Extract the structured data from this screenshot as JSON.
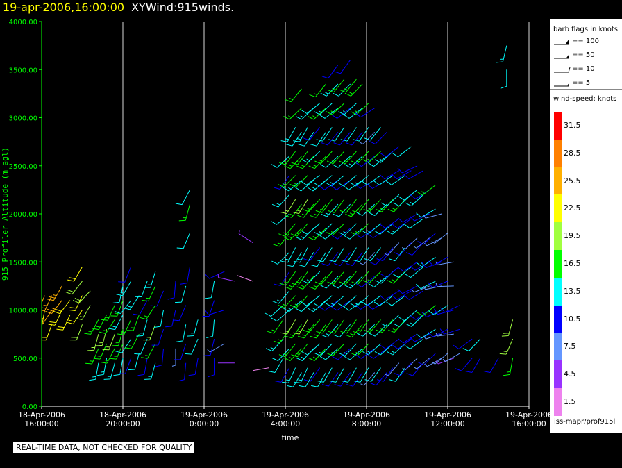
{
  "header": {
    "timestamp": "19-apr-2006,16:00:00",
    "plot_name": "XYWind:915winds."
  },
  "chart_data": {
    "type": "scatter",
    "title": "19-apr-2006,16:00:00  XYWind:915winds.",
    "xlabel": "time",
    "ylabel": "915 Profiler Altitude (m agl)",
    "ylim": [
      0,
      4000
    ],
    "y_ticks": [
      "0.00",
      "500.00",
      "1000.00",
      "1500.00",
      "2000.00",
      "2500.00",
      "3000.00",
      "3500.00",
      "4000.00"
    ],
    "x_ticks": [
      [
        "18-Apr-2006",
        "16:00:00"
      ],
      [
        "18-Apr-2006",
        "20:00:00"
      ],
      [
        "19-Apr-2006",
        "0:00:00"
      ],
      [
        "19-Apr-2006",
        "4:00:00"
      ],
      [
        "19-Apr-2006",
        "8:00:00"
      ],
      [
        "19-Apr-2006",
        "12:00:00"
      ],
      [
        "19-Apr-2006",
        "16:00:00"
      ]
    ],
    "x_range_hours": [
      0,
      24
    ],
    "grid": "vertical lines at each time tick",
    "barb_profiles": [
      {
        "t": 0.15,
        "heights": [
          1000,
          1150
        ],
        "speed": 26,
        "dir": 200
      },
      {
        "t": 0.5,
        "heights": [
          850,
          1000,
          1150
        ],
        "speed": 25,
        "dir": 210
      },
      {
        "t": 1.0,
        "heights": [
          1000,
          1100,
          1250
        ],
        "speed": 25,
        "dir": 215
      },
      {
        "t": 1.4,
        "heights": [
          950,
          1100
        ],
        "speed": 24,
        "dir": 215
      },
      {
        "t": 2.0,
        "heights": [
          850,
          1000,
          1150,
          1300,
          1450
        ],
        "speed": 22,
        "dir": 210
      },
      {
        "t": 2.4,
        "heights": [
          1050,
          1200
        ],
        "speed": 21,
        "dir": 220
      },
      {
        "t": 2.8,
        "heights": [
          450,
          600,
          750,
          900
        ],
        "speed": 17,
        "dir": 200
      },
      {
        "t": 3.2,
        "heights": [
          500,
          650,
          800,
          950
        ],
        "speed": 17,
        "dir": 200
      },
      {
        "t": 3.6,
        "heights": [
          450,
          600,
          750,
          900,
          1050
        ],
        "speed": 17,
        "dir": 205
      },
      {
        "t": 4.0,
        "heights": [
          500,
          650,
          800,
          950,
          1100,
          1250
        ],
        "speed": 16,
        "dir": 200
      },
      {
        "t": 4.4,
        "heights": [
          500,
          700,
          900,
          1100,
          1300,
          1450
        ],
        "speed": 14,
        "dir": 210
      },
      {
        "t": 4.8,
        "heights": [
          550,
          750,
          950,
          1150
        ],
        "speed": 16,
        "dir": 205
      },
      {
        "t": 5.2,
        "heights": [
          500,
          700,
          900,
          1100,
          1300
        ],
        "speed": 13,
        "dir": 200
      },
      {
        "t": 5.6,
        "heights": [
          450,
          650,
          850,
          1050,
          1250,
          1400
        ],
        "speed": 17,
        "dir": 205
      },
      {
        "t": 6.0,
        "heights": [
          600,
          800,
          1000,
          1200
        ],
        "speed": 12,
        "dir": 195
      },
      {
        "t": 6.6,
        "heights": [
          600,
          1000,
          1300
        ],
        "speed": 10,
        "dir": 190
      },
      {
        "t": 7.1,
        "heights": [
          450,
          650,
          850,
          1050,
          1250
        ],
        "speed": 12,
        "dir": 195
      },
      {
        "t": 7.3,
        "heights": [
          1450,
          1800,
          2100,
          2250
        ],
        "speed": 14,
        "dir": 200
      },
      {
        "t": 7.7,
        "heights": [
          500,
          700,
          900
        ],
        "speed": 13,
        "dir": 200
      },
      {
        "t": 8.5,
        "heights": [
          500,
          700,
          900,
          1100,
          1300
        ],
        "speed": 12,
        "dir": 190
      },
      {
        "t": 9.0,
        "heights": [
          650,
          1000,
          1400
        ],
        "speed": 10,
        "dir": 250
      },
      {
        "t": 9.5,
        "heights": [
          450,
          1300
        ],
        "speed": 6,
        "dir": 280
      },
      {
        "t": 10.4,
        "heights": [
          1300,
          1700
        ],
        "speed": 5,
        "dir": 300
      },
      {
        "t": 11.2,
        "heights": [
          400
        ],
        "speed": 4,
        "dir": 270
      },
      {
        "t": 11.9,
        "heights": [
          500,
          700,
          900,
          1050
        ],
        "speed": 15,
        "dir": 220
      },
      {
        "t": 12.2,
        "heights": [
          400,
          600,
          800,
          1000,
          1200,
          1400,
          1600,
          1800,
          2000,
          2200,
          2400,
          2600
        ],
        "speed": 14,
        "dir": 220
      },
      {
        "t": 12.5,
        "heights": [
          400,
          650,
          900,
          1150,
          1400,
          1650,
          1900,
          2150,
          2400,
          2650,
          2900
        ],
        "speed": 17,
        "dir": 215
      },
      {
        "t": 12.8,
        "heights": [
          350,
          600,
          850,
          1100,
          1350,
          1600,
          1850,
          2100,
          2350,
          2600,
          2850,
          3100,
          3300
        ],
        "speed": 16,
        "dir": 220
      },
      {
        "t": 13.1,
        "heights": [
          400,
          650,
          900,
          1150,
          1400,
          1650,
          1900,
          2150,
          2400,
          2650,
          2900
        ],
        "speed": 17,
        "dir": 215
      },
      {
        "t": 13.4,
        "heights": [
          350,
          600,
          850,
          1100,
          1350,
          1600,
          1850,
          2100,
          2350,
          2600,
          2850,
          3100
        ],
        "speed": 15,
        "dir": 220
      },
      {
        "t": 13.7,
        "heights": [
          400,
          650,
          900,
          1150,
          1400,
          1650,
          1900,
          2150,
          2400,
          2650,
          2900,
          3150
        ],
        "speed": 14,
        "dir": 225
      },
      {
        "t": 14.0,
        "heights": [
          350,
          600,
          850,
          1100,
          1350,
          1600,
          1850,
          2100,
          2350,
          2600,
          2850,
          3100,
          3350
        ],
        "speed": 16,
        "dir": 220
      },
      {
        "t": 14.3,
        "heights": [
          400,
          650,
          900,
          1150,
          1400,
          1650,
          1900,
          2150,
          2400,
          2650,
          2900,
          3150
        ],
        "speed": 15,
        "dir": 220
      },
      {
        "t": 14.6,
        "heights": [
          350,
          600,
          850,
          1100,
          1350,
          1600,
          1850,
          2100,
          2350,
          2600,
          2850,
          3100,
          3350,
          3550
        ],
        "speed": 13,
        "dir": 225
      },
      {
        "t": 14.9,
        "heights": [
          400,
          650,
          900,
          1150,
          1400,
          1650,
          1900,
          2150,
          2400,
          2650,
          2900,
          3150,
          3400
        ],
        "speed": 16,
        "dir": 220
      },
      {
        "t": 15.2,
        "heights": [
          350,
          600,
          850,
          1100,
          1350,
          1600,
          1850,
          2100,
          2350,
          2600,
          2850,
          3100,
          3350,
          3600
        ],
        "speed": 12,
        "dir": 225
      },
      {
        "t": 15.5,
        "heights": [
          400,
          650,
          900,
          1150,
          1400,
          1650,
          1900,
          2150,
          2400,
          2650,
          2900,
          3150,
          3400
        ],
        "speed": 15,
        "dir": 220
      },
      {
        "t": 15.8,
        "heights": [
          350,
          600,
          850,
          1100,
          1350,
          1600,
          1850,
          2100,
          2350,
          2600,
          2850,
          3100,
          3350
        ],
        "speed": 14,
        "dir": 225
      },
      {
        "t": 16.1,
        "heights": [
          400,
          650,
          900,
          1150,
          1400,
          1650,
          1900,
          2150,
          2400,
          2650,
          2900,
          3150
        ],
        "speed": 16,
        "dir": 220
      },
      {
        "t": 16.4,
        "heights": [
          350,
          600,
          850,
          1100,
          1350,
          1600,
          1850,
          2100,
          2350,
          2600,
          2850,
          3100
        ],
        "speed": 11,
        "dir": 230
      },
      {
        "t": 16.7,
        "heights": [
          400,
          650,
          900,
          1150,
          1400,
          1650,
          1900,
          2150,
          2400,
          2650,
          2900
        ],
        "speed": 15,
        "dir": 225
      },
      {
        "t": 17.0,
        "heights": [
          350,
          600,
          850,
          1100,
          1350,
          1600,
          1850,
          2100,
          2350,
          2600,
          2850
        ],
        "speed": 12,
        "dir": 230
      },
      {
        "t": 17.3,
        "heights": [
          400,
          650,
          900,
          1150,
          1400,
          1650,
          1900,
          2150,
          2400,
          2650
        ],
        "speed": 14,
        "dir": 225
      },
      {
        "t": 17.6,
        "heights": [
          450,
          700,
          950,
          1200,
          1450,
          1700,
          1950,
          2200,
          2450,
          2700
        ],
        "speed": 11,
        "dir": 230
      },
      {
        "t": 17.9,
        "heights": [
          400,
          650,
          900,
          1150,
          1400,
          1650,
          1900,
          2150,
          2400
        ],
        "speed": 15,
        "dir": 225
      },
      {
        "t": 18.2,
        "heights": [
          450,
          700,
          950,
          1200,
          1450,
          1700,
          1950,
          2200,
          2450,
          2700
        ],
        "speed": 12,
        "dir": 230
      },
      {
        "t": 18.5,
        "heights": [
          500,
          750,
          1000,
          1250,
          1500,
          1750,
          2000,
          2250,
          2500
        ],
        "speed": 11,
        "dir": 235
      },
      {
        "t": 18.8,
        "heights": [
          450,
          700,
          950,
          1200,
          1450,
          1700,
          1950,
          2200,
          2450
        ],
        "speed": 13,
        "dir": 230
      },
      {
        "t": 19.1,
        "heights": [
          500,
          750,
          1000,
          1250,
          1500,
          1750,
          2000,
          2250
        ],
        "speed": 10,
        "dir": 240
      },
      {
        "t": 19.4,
        "heights": [
          550,
          800,
          1050,
          1300,
          1550,
          1800,
          2050,
          2300
        ],
        "speed": 14,
        "dir": 235
      },
      {
        "t": 19.7,
        "heights": [
          500,
          750,
          1000,
          1250,
          1500,
          1750,
          2000
        ],
        "speed": 9,
        "dir": 250
      },
      {
        "t": 20.0,
        "heights": [
          550,
          800,
          1050,
          1300,
          1550,
          1800
        ],
        "speed": 11,
        "dir": 240
      },
      {
        "t": 20.3,
        "heights": [
          500,
          750,
          1000,
          1250,
          1500
        ],
        "speed": 8,
        "dir": 260
      },
      {
        "t": 20.6,
        "heights": [
          550,
          800,
          1050
        ],
        "speed": 10,
        "dir": 250
      },
      {
        "t": 21.2,
        "heights": [
          500,
          700
        ],
        "speed": 12,
        "dir": 230
      },
      {
        "t": 21.6,
        "heights": [
          500,
          700
        ],
        "speed": 14,
        "dir": 220
      },
      {
        "t": 22.5,
        "heights": [
          500
        ],
        "speed": 13,
        "dir": 220
      },
      {
        "t": 23.2,
        "heights": [
          500,
          700,
          900
        ],
        "speed": 19,
        "dir": 200
      },
      {
        "t": 22.9,
        "heights": [
          3500,
          3750
        ],
        "speed": 15,
        "dir": 190
      }
    ]
  },
  "legend": {
    "barb_title": "barb flags in knots",
    "barb_items": [
      "== 100",
      "== 50",
      "== 10",
      "== 5"
    ],
    "speed_title": "wind-speed: knots",
    "scale": [
      {
        "label": "31.5",
        "color": "#ff0000"
      },
      {
        "label": "28.5",
        "color": "#ff8000"
      },
      {
        "label": "25.5",
        "color": "#ffb000"
      },
      {
        "label": "22.5",
        "color": "#ffff00"
      },
      {
        "label": "19.5",
        "color": "#a0ff40"
      },
      {
        "label": "16.5",
        "color": "#00ff00"
      },
      {
        "label": "13.5",
        "color": "#00ffff"
      },
      {
        "label": "10.5",
        "color": "#0000ff"
      },
      {
        "label": "7.5",
        "color": "#6496ff"
      },
      {
        "label": "4.5",
        "color": "#9933ff"
      },
      {
        "label": "1.5",
        "color": "#ee82ee"
      }
    ],
    "source": "iss-mapr/prof915l"
  },
  "footer": {
    "quality_note": "REAL-TIME DATA, NOT CHECKED FOR QUALITY"
  },
  "colors": {
    "background": "#000000",
    "axis": "#00ff00",
    "grid": "#ffffff",
    "title_timestamp": "#ffff00"
  }
}
